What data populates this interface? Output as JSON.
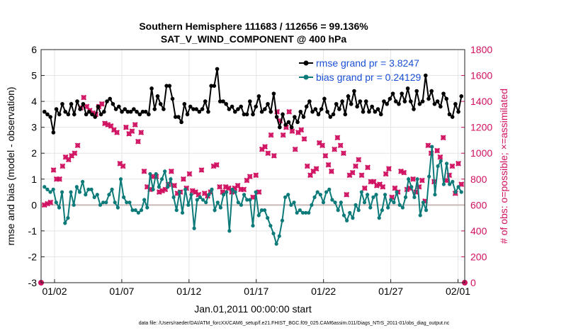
{
  "chart_data": {
    "type": "line",
    "title": "Southern Hemisphere 111683 / 112656 = 99.136%",
    "subtitle": "SAT_V_WIND_COMPONENT @ 400 hPa",
    "xlabel": "Jan.01,2011 00:00:00 start",
    "ylabel_left": "rmse and bias (model - observation)",
    "ylabel_right": "# of obs: o=possible; ×=assimilated",
    "footnote": "data file: /Users/raeder/DAI/ATM_forcXX/CAM6_setup/f.e21.FHIST_BGC.f09_025.CAM6assim.011/Diags_NTrS_2011-01/obs_diag_output.nc",
    "x_range": [
      0,
      31.5
    ],
    "ylim_left": [
      -3,
      6
    ],
    "ylim_right": [
      0,
      1800
    ],
    "left_ticks": [
      "-3",
      "-2",
      "-1",
      "0",
      "1",
      "2",
      "3",
      "4",
      "5",
      "6"
    ],
    "right_ticks": [
      "0",
      "200",
      "400",
      "600",
      "800",
      "1000",
      "1200",
      "1400",
      "1600",
      "1800"
    ],
    "x_ticks": [
      {
        "pos": 1,
        "label": "01/02"
      },
      {
        "pos": 6,
        "label": "01/07"
      },
      {
        "pos": 11,
        "label": "01/12"
      },
      {
        "pos": 16,
        "label": "01/17"
      },
      {
        "pos": 21,
        "label": "01/22"
      },
      {
        "pos": 26,
        "label": "01/27"
      },
      {
        "pos": 31,
        "label": "02/01"
      }
    ],
    "grid": true,
    "legend_position": "top-right",
    "series": [
      {
        "name": "rmse grand pr = 3.8247",
        "color": "#000000",
        "axis": "left",
        "values": [
          3.6,
          3.5,
          3.4,
          2.8,
          3.7,
          3.5,
          3.9,
          3.6,
          3.5,
          3.9,
          3.5,
          4.0,
          3.7,
          3.9,
          3.5,
          3.6,
          3.5,
          3.4,
          3.8,
          3.5,
          3.6,
          4.0,
          4.1,
          3.9,
          3.7,
          3.8,
          3.6,
          3.7,
          3.6,
          3.6,
          3.7,
          3.6,
          3.5,
          3.6,
          3.6,
          3.5,
          4.5,
          3.7,
          4.2,
          3.9,
          3.7,
          4.6,
          4.6,
          4.1,
          3.4,
          3.4,
          3.2,
          3.9,
          3.5,
          3.8,
          3.7,
          3.7,
          3.6,
          3.7,
          4.0,
          3.6,
          4.6,
          4.6,
          5.25,
          4.0,
          4.0,
          3.9,
          3.7,
          3.8,
          3.6,
          3.7,
          3.8,
          3.5,
          3.5,
          4.0,
          3.5,
          3.8,
          4.2,
          3.6,
          3.7,
          3.9,
          3.6,
          4.3,
          3.4,
          3.0,
          3.5,
          3.1,
          3.2,
          3.0,
          3.4,
          3.2,
          3.6,
          3.4,
          3.8,
          4.0,
          3.6,
          3.7,
          3.5,
          3.7,
          4.1,
          3.6,
          3.4,
          3.5,
          3.9,
          3.7,
          4.0,
          3.5,
          4.2,
          3.9,
          4.4,
          3.8,
          4.0,
          3.6,
          4.0,
          3.6,
          3.8,
          3.6,
          3.7,
          3.5,
          4.0,
          3.9,
          4.1,
          4.3,
          4.0,
          3.9,
          4.3,
          4.0,
          4.5,
          4.0,
          3.7,
          4.4,
          3.9,
          4.0,
          5.0,
          4.1,
          4.4,
          3.9,
          4.0,
          3.8,
          4.3,
          4.1,
          3.5,
          3.4,
          3.9,
          3.6,
          4.2
        ]
      },
      {
        "name": "bias grand pr = 0.24129",
        "color": "#0d7a7a",
        "axis": "left",
        "values": [
          0.7,
          0.6,
          0.5,
          0.6,
          0.1,
          -0.1,
          0.5,
          -0.7,
          -0.5,
          0.5,
          0.0,
          0.7,
          0.5,
          0.9,
          0.4,
          0.6,
          0.6,
          0.3,
          0.4,
          0.0,
          0.1,
          0.1,
          0.4,
          0.6,
          0.1,
          -0.1,
          1.0,
          0.3,
          0.1,
          0.1,
          -0.2,
          -0.2,
          -0.3,
          -0.2,
          0.2,
          -0.1,
          1.2,
          0.6,
          1.2,
          0.7,
          1.0,
          1.3,
          0.7,
          1.0,
          0.3,
          -0.2,
          0.5,
          -0.3,
          0.6,
          0.0,
          0.4,
          -0.9,
          0.2,
          0.3,
          0.2,
          0.1,
          0.4,
          0.6,
          -0.2,
          0.1,
          -0.1,
          0.4,
          0.5,
          -1.0,
          0.6,
          0.5,
          0.1,
          0.0,
          0.4,
          0.2,
          0.2,
          -0.8,
          0.5,
          -0.4,
          -0.2,
          -0.2,
          -0.5,
          -0.8,
          -1.1,
          -1.5,
          -1.2,
          -0.6,
          0.3,
          0.4,
          0.0,
          0.1,
          -0.3,
          -0.2,
          -0.3,
          -0.3,
          -0.3,
          0.0,
          0.3,
          0.5,
          0.4,
          0.1,
          0.5,
          0.6,
          0.2,
          0.1,
          -0.2,
          0.1,
          -0.4,
          -0.6,
          -0.3,
          -0.5,
          0.0,
          -0.2,
          0.5,
          0.1,
          0.4,
          -0.1,
          0.3,
          0.4,
          -0.5,
          -0.2,
          0.4,
          -0.1,
          0.2,
          0.1,
          0.5,
          0.0,
          -0.1,
          0.3,
          1.0,
          0.7,
          0.3,
          1.0,
          -0.4,
          0.1,
          -0.2,
          1.1,
          2.25,
          0.4,
          1.5,
          1.7,
          0.8,
          1.6,
          0.8,
          0.9,
          0.5,
          0.7,
          0.5
        ]
      },
      {
        "name": "obs possible",
        "color": "#d01060",
        "axis": "right",
        "values": [
          600,
          610,
          620,
          870,
          800,
          800,
          900,
          970,
          950,
          980,
          1000,
          1060,
          1350,
          1430,
          1360,
          1330,
          1310,
          1300,
          1360,
          1380,
          1230,
          1220,
          1210,
          1180,
          1160,
          920,
          900,
          1200,
          1150,
          1170,
          1220,
          1090,
          1160,
          860,
          740,
          720,
          820,
          820,
          700,
          710,
          720,
          760,
          860,
          750,
          690,
          700,
          800,
          730,
          840,
          710,
          700,
          680,
          870,
          690,
          670,
          700,
          900,
          910,
          740,
          700,
          740,
          730,
          700,
          730,
          750,
          720,
          720,
          790,
          820,
          660,
          830,
          700,
          1030,
          1050,
          1000,
          1140,
          980,
          1320,
          1250,
          1140,
          1200,
          1320,
          1170,
          1030,
          1160,
          1180,
          1110,
          900,
          830,
          860,
          880,
          1080,
          1060,
          980,
          910,
          860,
          1030,
          1120,
          1060,
          1000,
          680,
          830,
          850,
          900,
          950,
          830,
          730,
          890,
          780,
          780,
          750,
          760,
          740,
          840,
          880,
          660,
          730,
          700,
          860,
          850,
          720,
          730,
          800,
          700,
          740,
          790,
          630,
          1060,
          1000,
          780,
          1020,
          970,
          1120,
          790,
          830,
          900,
          690,
          920,
          760
        ]
      },
      {
        "name": "obs assimilated",
        "color": "#d01060",
        "axis": "right",
        "values": [
          600,
          610,
          620,
          870,
          800,
          800,
          900,
          970,
          950,
          980,
          1000,
          1060,
          1350,
          1430,
          1360,
          1330,
          1310,
          1300,
          1360,
          1380,
          1230,
          1220,
          1210,
          1180,
          1160,
          920,
          900,
          1200,
          1150,
          1170,
          1220,
          1090,
          1160,
          860,
          740,
          720,
          820,
          820,
          700,
          710,
          720,
          760,
          860,
          750,
          690,
          700,
          800,
          730,
          840,
          710,
          700,
          680,
          870,
          690,
          670,
          700,
          900,
          910,
          740,
          700,
          740,
          730,
          700,
          730,
          750,
          720,
          720,
          790,
          820,
          660,
          830,
          700,
          1030,
          1050,
          1000,
          1140,
          980,
          1320,
          1250,
          1140,
          1200,
          1320,
          1170,
          1030,
          1160,
          1180,
          1110,
          900,
          830,
          860,
          880,
          1080,
          1060,
          980,
          910,
          860,
          1030,
          1120,
          1060,
          1000,
          680,
          830,
          850,
          900,
          950,
          830,
          730,
          890,
          780,
          780,
          750,
          760,
          740,
          840,
          880,
          660,
          730,
          700,
          860,
          850,
          720,
          730,
          800,
          700,
          740,
          790,
          630,
          1060,
          1000,
          780,
          1020,
          970,
          1120,
          790,
          830,
          900,
          690,
          920,
          760
        ]
      }
    ]
  }
}
